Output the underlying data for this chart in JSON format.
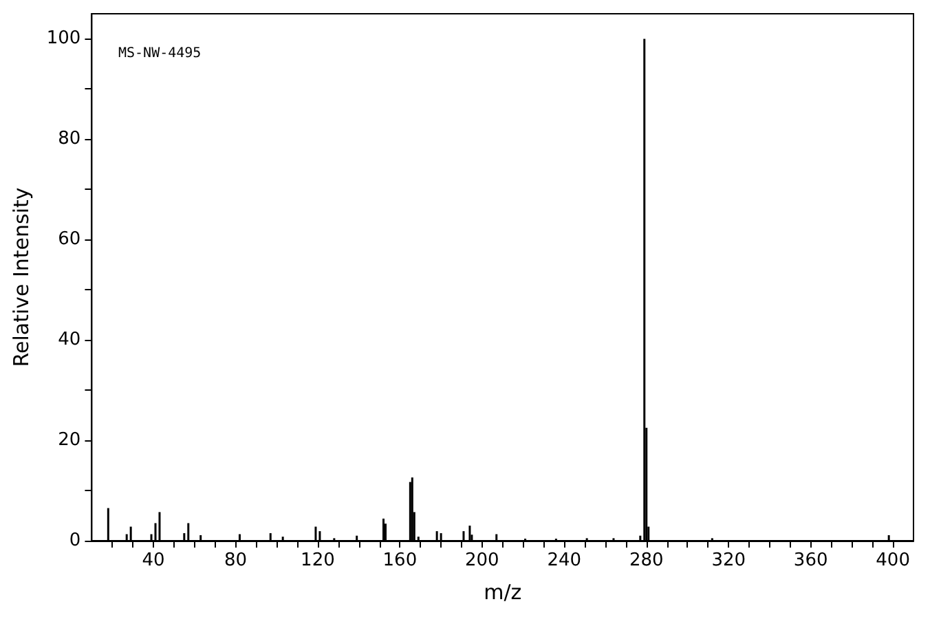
{
  "chart_data": {
    "type": "bar",
    "xlabel": "m/z",
    "ylabel": "Relative Intensity",
    "annotations": [
      "MS-NW-4495"
    ],
    "x": [
      18,
      27,
      29,
      39,
      41,
      43,
      55,
      57,
      63,
      82,
      97,
      103,
      119,
      121,
      128,
      139,
      152,
      153,
      165,
      166,
      167,
      169,
      178,
      180,
      191,
      194,
      195,
      207,
      221,
      236,
      251,
      264,
      277,
      279,
      280,
      281,
      312,
      398
    ],
    "values": [
      6.5,
      1.3,
      2.8,
      1.3,
      3.5,
      5.7,
      1.5,
      3.5,
      1.1,
      1.3,
      1.5,
      0.8,
      2.8,
      1.9,
      0.5,
      1,
      4.4,
      3.4,
      11.7,
      12.6,
      5.7,
      0.8,
      1.9,
      1.5,
      1.9,
      3,
      1.2,
      1.3,
      0.4,
      0.4,
      0.5,
      0.5,
      1,
      100,
      22.5,
      2.8,
      0.5,
      1.1
    ],
    "color": "#000000",
    "xlim": [
      10,
      410
    ],
    "xticks": [
      {
        "value": 20,
        "label": null
      },
      {
        "value": 30,
        "label": null
      },
      40,
      {
        "value": 50,
        "label": null
      },
      {
        "value": 60,
        "label": null
      },
      {
        "value": 70,
        "label": null
      },
      80,
      {
        "value": 90,
        "label": null
      },
      {
        "value": 100,
        "label": null
      },
      {
        "value": 110,
        "label": null
      },
      120,
      {
        "value": 130,
        "label": null
      },
      {
        "value": 140,
        "label": null
      },
      {
        "value": 150,
        "label": null
      },
      160,
      {
        "value": 170,
        "label": null
      },
      {
        "value": 180,
        "label": null
      },
      {
        "value": 190,
        "label": null
      },
      200,
      {
        "value": 210,
        "label": null
      },
      {
        "value": 220,
        "label": null
      },
      {
        "value": 230,
        "label": null
      },
      240,
      {
        "value": 250,
        "label": null
      },
      {
        "value": 260,
        "label": null
      },
      {
        "value": 270,
        "label": null
      },
      280,
      {
        "value": 290,
        "label": null
      },
      {
        "value": 300,
        "label": null
      },
      {
        "value": 310,
        "label": null
      },
      320,
      {
        "value": 330,
        "label": null
      },
      {
        "value": 340,
        "label": null
      },
      {
        "value": 350,
        "label": null
      },
      360,
      {
        "value": 370,
        "label": null
      },
      {
        "value": 380,
        "label": null
      },
      {
        "value": 390,
        "label": null
      },
      400
    ],
    "ylim": [
      0,
      105
    ],
    "yticks": [
      0,
      {
        "value": 10,
        "label": null
      },
      20,
      {
        "value": 30,
        "label": null
      },
      40,
      {
        "value": 50,
        "label": null
      },
      60,
      {
        "value": 70,
        "label": null
      },
      80,
      {
        "value": 90,
        "label": null
      },
      100
    ],
    "grid": false
  }
}
